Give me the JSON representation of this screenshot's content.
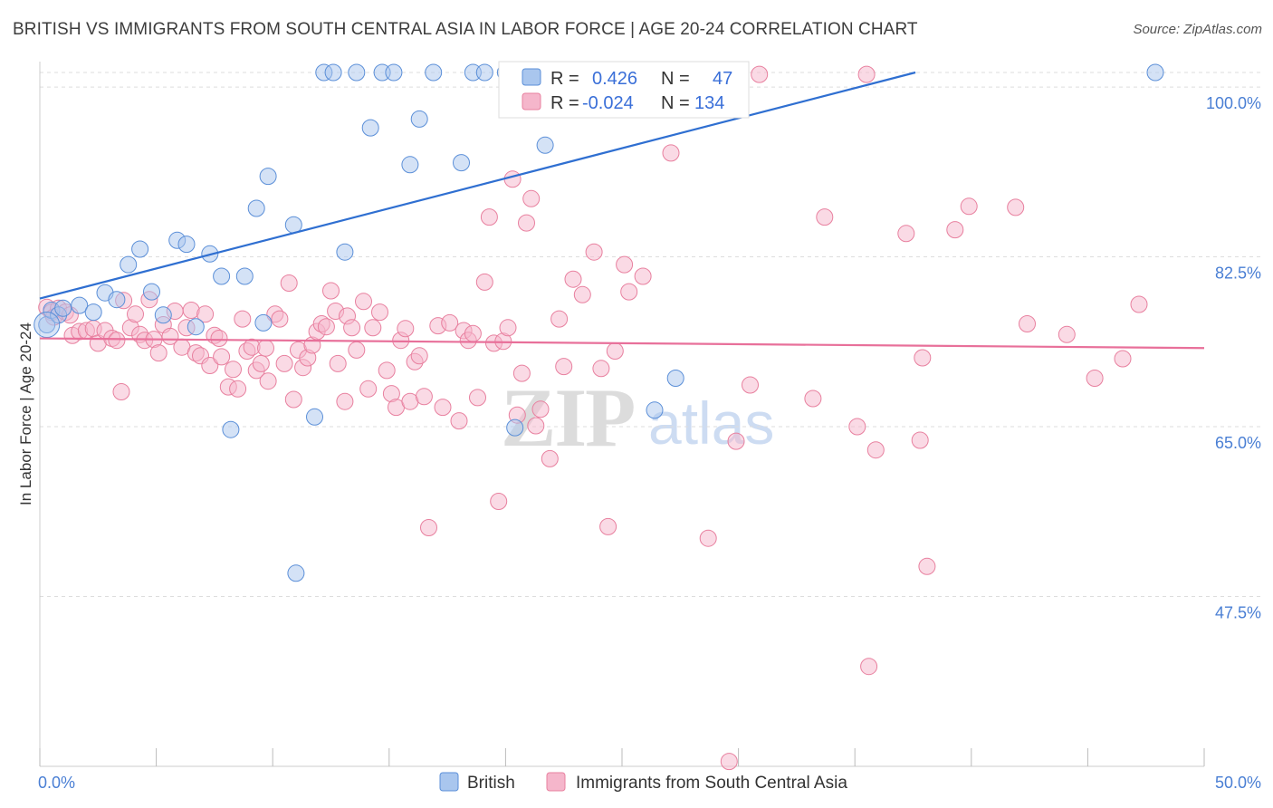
{
  "title": "BRITISH VS IMMIGRANTS FROM SOUTH CENTRAL ASIA IN LABOR FORCE | AGE 20-24 CORRELATION CHART",
  "source": "Source: ZipAtlas.com",
  "watermark": {
    "zip": "ZIP",
    "atlas": "atlas"
  },
  "colors": {
    "british_fill": "#a9c6ee",
    "british_stroke": "#5b8fd8",
    "british_line": "#2f6fd1",
    "immigrant_fill": "#f5b6cb",
    "immigrant_stroke": "#e8809f",
    "immigrant_line": "#e8709a",
    "tick_text": "#4a7fd4",
    "grid": "#dddddd"
  },
  "legend": {
    "british": {
      "r_label": "R =",
      "r_value": "0.426",
      "n_label": "N =",
      "n_value": "47"
    },
    "immigrants": {
      "r_label": "R =",
      "r_value": "-0.024",
      "n_label": "N =",
      "n_value": "134"
    }
  },
  "chart_data": {
    "type": "scatter",
    "title": "BRITISH VS IMMIGRANTS FROM SOUTH CENTRAL ASIA IN LABOR FORCE | AGE 20-24 CORRELATION CHART",
    "xlabel": "",
    "ylabel": "In Labor Force | Age 20-24",
    "xlim": [
      0,
      50
    ],
    "ylim": [
      30,
      101.5
    ],
    "x_tick_labels": [
      "0.0%",
      "50.0%"
    ],
    "y_ticks": [
      47.5,
      65.0,
      82.5,
      100.0
    ],
    "y_tick_labels": [
      "47.5%",
      "65.0%",
      "82.5%",
      "100.0%"
    ],
    "grid": true,
    "legend_position": "top-center",
    "series": [
      {
        "name": "British",
        "r": 0.426,
        "n": 47,
        "trend": {
          "x": [
            0,
            37.6
          ],
          "y": [
            78.2,
            101.5
          ]
        },
        "points": [
          [
            0.3,
            75.5
          ],
          [
            0.5,
            77
          ],
          [
            0.8,
            76.5
          ],
          [
            1.0,
            77.2
          ],
          [
            1.7,
            77.5
          ],
          [
            2.3,
            76.8
          ],
          [
            2.8,
            78.8
          ],
          [
            3.3,
            78.1
          ],
          [
            3.8,
            81.7
          ],
          [
            4.3,
            83.3
          ],
          [
            4.8,
            78.9
          ],
          [
            5.3,
            76.5
          ],
          [
            5.9,
            84.2
          ],
          [
            6.3,
            83.8
          ],
          [
            6.7,
            75.3
          ],
          [
            7.3,
            82.8
          ],
          [
            7.8,
            80.5
          ],
          [
            8.2,
            64.7
          ],
          [
            8.8,
            80.5
          ],
          [
            9.3,
            87.5
          ],
          [
            9.6,
            75.7
          ],
          [
            9.8,
            90.8
          ],
          [
            10.9,
            85.8
          ],
          [
            11.0,
            49.9
          ],
          [
            11.8,
            66
          ],
          [
            12.2,
            101.5
          ],
          [
            12.6,
            101.5
          ],
          [
            13.1,
            83
          ],
          [
            13.6,
            101.5
          ],
          [
            14.2,
            95.8
          ],
          [
            14.7,
            101.5
          ],
          [
            15.2,
            101.5
          ],
          [
            15.9,
            92
          ],
          [
            16.3,
            96.7
          ],
          [
            16.9,
            101.5
          ],
          [
            18.1,
            92.2
          ],
          [
            18.6,
            101.5
          ],
          [
            19.1,
            101.5
          ],
          [
            20.0,
            101.5
          ],
          [
            20.4,
            64.9
          ],
          [
            21.7,
            94
          ],
          [
            22.7,
            101.5
          ],
          [
            24.9,
            101.5
          ],
          [
            26.4,
            66.7
          ],
          [
            27.3,
            70
          ],
          [
            28.6,
            101.5
          ],
          [
            47.9,
            101.5
          ]
        ]
      },
      {
        "name": "Immigrants from South Central Asia",
        "r": -0.024,
        "n": 134,
        "trend": {
          "x": [
            0,
            50
          ],
          "y": [
            74.1,
            73.1
          ]
        },
        "points": [
          [
            0.3,
            77.3
          ],
          [
            0.5,
            76.8
          ],
          [
            0.6,
            76.3
          ],
          [
            0.8,
            77.2
          ],
          [
            1.1,
            76.8
          ],
          [
            1.3,
            76.5
          ],
          [
            1.4,
            74.4
          ],
          [
            1.7,
            74.8
          ],
          [
            2.0,
            74.9
          ],
          [
            2.3,
            75.1
          ],
          [
            2.5,
            73.6
          ],
          [
            2.8,
            74.9
          ],
          [
            3.1,
            74.1
          ],
          [
            3.3,
            73.9
          ],
          [
            3.5,
            68.6
          ],
          [
            3.6,
            78
          ],
          [
            3.9,
            75.2
          ],
          [
            4.1,
            76.6
          ],
          [
            4.3,
            74.5
          ],
          [
            4.5,
            73.9
          ],
          [
            4.7,
            78.1
          ],
          [
            4.9,
            74
          ],
          [
            5.1,
            72.6
          ],
          [
            5.3,
            75.5
          ],
          [
            5.6,
            74.3
          ],
          [
            5.8,
            76.9
          ],
          [
            6.1,
            73.2
          ],
          [
            6.3,
            75.2
          ],
          [
            6.5,
            77
          ],
          [
            6.7,
            72.6
          ],
          [
            6.9,
            72.3
          ],
          [
            7.1,
            76.6
          ],
          [
            7.3,
            71.3
          ],
          [
            7.5,
            74.4
          ],
          [
            7.7,
            74.1
          ],
          [
            7.8,
            72.2
          ],
          [
            8.1,
            69.1
          ],
          [
            8.3,
            70.9
          ],
          [
            8.5,
            68.9
          ],
          [
            8.7,
            76.1
          ],
          [
            8.9,
            72.8
          ],
          [
            9.1,
            73.2
          ],
          [
            9.3,
            70.8
          ],
          [
            9.5,
            71.5
          ],
          [
            9.7,
            73.1
          ],
          [
            9.8,
            69.7
          ],
          [
            10.1,
            76.6
          ],
          [
            10.3,
            76.1
          ],
          [
            10.5,
            71.5
          ],
          [
            10.7,
            79.8
          ],
          [
            10.9,
            67.8
          ],
          [
            11.1,
            72.9
          ],
          [
            11.3,
            71.1
          ],
          [
            11.5,
            72.1
          ],
          [
            11.7,
            73.4
          ],
          [
            11.9,
            74.8
          ],
          [
            12.1,
            75.6
          ],
          [
            12.3,
            75.3
          ],
          [
            12.5,
            79
          ],
          [
            12.7,
            76.9
          ],
          [
            12.8,
            71.5
          ],
          [
            13.1,
            67.6
          ],
          [
            13.2,
            76.4
          ],
          [
            13.4,
            75.2
          ],
          [
            13.6,
            72.9
          ],
          [
            13.9,
            77.9
          ],
          [
            14.1,
            68.9
          ],
          [
            14.3,
            75.2
          ],
          [
            14.6,
            76.8
          ],
          [
            14.9,
            70.8
          ],
          [
            15.1,
            68.4
          ],
          [
            15.3,
            67
          ],
          [
            15.5,
            73.9
          ],
          [
            15.7,
            75.1
          ],
          [
            15.9,
            67.6
          ],
          [
            16.1,
            71.7
          ],
          [
            16.3,
            72.3
          ],
          [
            16.5,
            68.1
          ],
          [
            16.7,
            54.6
          ],
          [
            17.1,
            75.4
          ],
          [
            17.3,
            67
          ],
          [
            17.6,
            75.7
          ],
          [
            18.0,
            65.6
          ],
          [
            18.2,
            74.9
          ],
          [
            18.4,
            73.9
          ],
          [
            18.6,
            74.6
          ],
          [
            18.8,
            68
          ],
          [
            19.1,
            79.9
          ],
          [
            19.3,
            86.6
          ],
          [
            19.5,
            73.6
          ],
          [
            19.7,
            57.3
          ],
          [
            19.9,
            73.8
          ],
          [
            20.1,
            75.2
          ],
          [
            20.3,
            90.5
          ],
          [
            20.5,
            66.2
          ],
          [
            20.7,
            70.5
          ],
          [
            20.9,
            86
          ],
          [
            21.1,
            88.5
          ],
          [
            21.3,
            65.1
          ],
          [
            21.5,
            66.8
          ],
          [
            21.9,
            61.7
          ],
          [
            22.3,
            76.1
          ],
          [
            22.5,
            71.2
          ],
          [
            22.9,
            80.2
          ],
          [
            23.3,
            78.6
          ],
          [
            23.8,
            83
          ],
          [
            24.1,
            71
          ],
          [
            24.4,
            54.7
          ],
          [
            24.7,
            72.8
          ],
          [
            25.1,
            81.7
          ],
          [
            25.3,
            78.9
          ],
          [
            25.9,
            80.5
          ],
          [
            27.1,
            93.2
          ],
          [
            28.7,
            53.5
          ],
          [
            29.6,
            30.5
          ],
          [
            29.9,
            63.5
          ],
          [
            30.5,
            69.3
          ],
          [
            30.9,
            101.3
          ],
          [
            33.2,
            67.9
          ],
          [
            33.7,
            86.6
          ],
          [
            35.1,
            65
          ],
          [
            35.5,
            101.3
          ],
          [
            35.6,
            40.3
          ],
          [
            35.9,
            62.6
          ],
          [
            37.2,
            84.9
          ],
          [
            37.8,
            63.6
          ],
          [
            37.9,
            72.1
          ],
          [
            38.1,
            50.6
          ],
          [
            39.3,
            85.3
          ],
          [
            39.9,
            87.7
          ],
          [
            41.9,
            87.6
          ],
          [
            42.4,
            75.6
          ],
          [
            44.1,
            74.5
          ],
          [
            45.3,
            70
          ],
          [
            46.5,
            72
          ],
          [
            47.2,
            77.6
          ]
        ]
      }
    ]
  },
  "bottom_legend": {
    "british": "British",
    "immigrants": "Immigrants from South Central Asia"
  }
}
